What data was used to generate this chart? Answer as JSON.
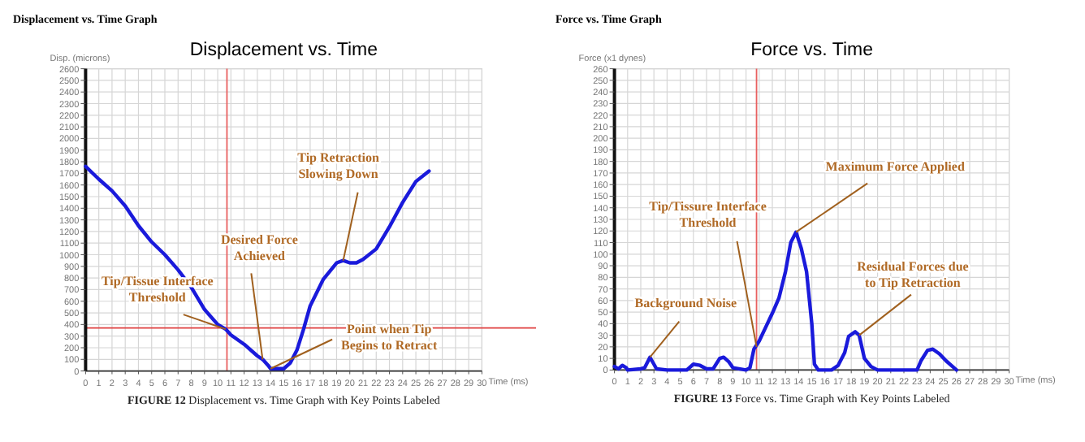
{
  "chart_data": [
    {
      "type": "line",
      "title": "Displacement vs. Time Graph",
      "subtitle": "Displacement vs. Time",
      "xlabel": "Time (ms)",
      "ylabel": "Disp. (microns)",
      "grid": true,
      "xlim": [
        0,
        30
      ],
      "xticks": [
        0,
        1,
        2,
        3,
        4,
        5,
        6,
        7,
        8,
        9,
        10,
        11,
        12,
        13,
        14,
        15,
        16,
        17,
        18,
        19,
        20,
        21,
        22,
        23,
        24,
        25,
        26,
        27,
        28,
        29,
        30
      ],
      "ylim": [
        0,
        2600
      ],
      "yticks": [
        0,
        100,
        200,
        300,
        400,
        500,
        600,
        700,
        800,
        900,
        1000,
        1100,
        1200,
        1300,
        1400,
        1500,
        1600,
        1700,
        1800,
        1900,
        2000,
        2100,
        2200,
        2300,
        2400,
        2500,
        2600
      ],
      "x": [
        0,
        1,
        2,
        3,
        4,
        5,
        6,
        7,
        8,
        9,
        10,
        10.6,
        11,
        12,
        13,
        13.4,
        13.8,
        14,
        15,
        15.5,
        16,
        16.5,
        17,
        18,
        19,
        19.5,
        20,
        20.5,
        21,
        22,
        23,
        24,
        25,
        26
      ],
      "series": [
        {
          "color": "#1a1adb",
          "values": [
            1760,
            1650,
            1550,
            1420,
            1250,
            1110,
            1000,
            870,
            720,
            530,
            400,
            360,
            310,
            230,
            130,
            100,
            50,
            20,
            20,
            70,
            180,
            360,
            560,
            790,
            930,
            950,
            930,
            930,
            960,
            1050,
            1240,
            1450,
            1630,
            1720
          ]
        }
      ],
      "ref_lines": [
        {
          "axis": "x",
          "value": 10.7,
          "color": "#e86060"
        },
        {
          "axis": "y",
          "value": 370,
          "color": "#e04040"
        }
      ],
      "annotations": [
        {
          "text": "Tip/Tissue Interface\nThreshold",
          "x": 10.6,
          "y": 360
        },
        {
          "text": "Desired Force\nAchieved",
          "x": 13.4,
          "y": 100
        },
        {
          "text": "Point when Tip\nBegins to Retract",
          "x": 14,
          "y": 20
        },
        {
          "text": "Tip Retraction\nSlowing Down",
          "x": 19.5,
          "y": 950
        },
        "FIGURE 12 Displacement vs. Time Graph with Key Points Labeled"
      ]
    },
    {
      "type": "line",
      "title": "Force vs. Time Graph",
      "subtitle": "Force vs. Time",
      "xlabel": "Time (ms)",
      "ylabel": "Force (x1 dynes)",
      "grid": true,
      "xlim": [
        0,
        30
      ],
      "xticks": [
        0,
        1,
        2,
        3,
        4,
        5,
        6,
        7,
        8,
        9,
        10,
        11,
        12,
        13,
        14,
        15,
        16,
        17,
        18,
        19,
        20,
        21,
        22,
        23,
        24,
        25,
        26,
        27,
        28,
        29,
        30
      ],
      "ylim": [
        0,
        260
      ],
      "yticks": [
        0,
        10,
        20,
        30,
        40,
        50,
        60,
        70,
        80,
        90,
        100,
        110,
        120,
        130,
        140,
        150,
        160,
        170,
        180,
        190,
        200,
        210,
        220,
        230,
        240,
        250,
        260
      ],
      "x": [
        0,
        0.3,
        0.6,
        0.9,
        1,
        2,
        2.3,
        2.7,
        3.2,
        4,
        5.5,
        6,
        6.5,
        7,
        7.5,
        8,
        8.3,
        8.7,
        9,
        10,
        10.3,
        10.6,
        11,
        11.5,
        12,
        12.5,
        13,
        13.4,
        13.8,
        14.2,
        14.6,
        15,
        15.2,
        15.5,
        16.5,
        17,
        17.5,
        17.8,
        18.3,
        18.6,
        19,
        19.5,
        20,
        23,
        23.3,
        23.8,
        24.2,
        24.7,
        25.2,
        25.7,
        26
      ],
      "series": [
        {
          "color": "#1a1adb",
          "values": [
            3,
            1,
            4,
            2,
            0,
            1,
            2,
            11,
            1,
            0,
            0,
            5,
            4,
            1,
            1,
            10,
            11,
            7,
            2,
            0,
            2,
            18,
            25,
            37,
            49,
            62,
            85,
            110,
            119,
            105,
            85,
            40,
            5,
            0,
            0,
            4,
            15,
            29,
            33,
            30,
            10,
            3,
            0,
            0,
            8,
            17,
            18,
            14,
            8,
            3,
            0
          ]
        }
      ],
      "ref_lines": [
        {
          "axis": "x",
          "value": 10.8,
          "color": "#e86060"
        }
      ],
      "annotations": [
        {
          "text": "Tip/Tissure Interface\nThreshold",
          "x": 10.8,
          "y": 20
        },
        {
          "text": "Maximum Force Applied",
          "x": 13.8,
          "y": 119
        },
        {
          "text": "Background Noise",
          "x": 2.7,
          "y": 11
        },
        {
          "text": "Residual Forces due\nto Tip Retraction",
          "x": 18.6,
          "y": 30
        },
        "FIGURE 13 Force vs. Time Graph with Key Points Labeled"
      ]
    }
  ]
}
